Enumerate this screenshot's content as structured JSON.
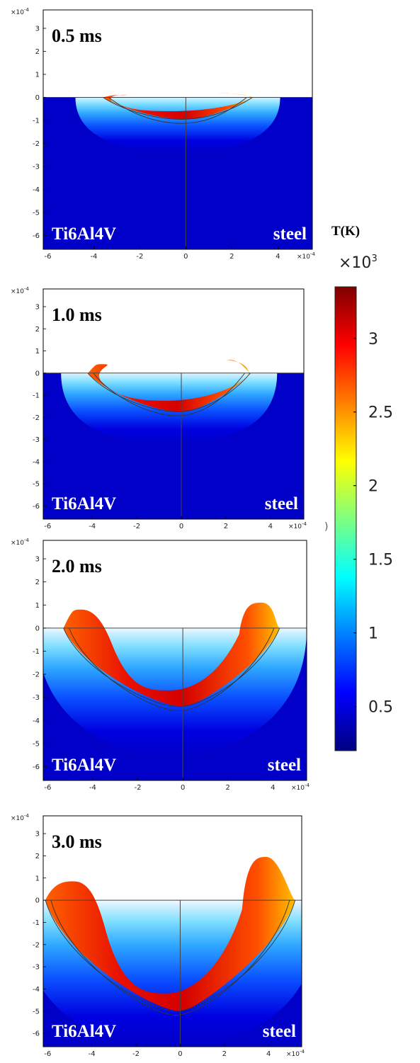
{
  "chart_data": {
    "type": "heatmap",
    "colorbar": {
      "title": "T(K)",
      "multiplier": "×10",
      "multiplier_exp": "3",
      "ticks": [
        "0.5",
        "1",
        "1.5",
        "2",
        "2.5",
        "3"
      ],
      "tick_values": [
        0.5,
        1,
        1.5,
        2,
        2.5,
        3
      ],
      "range": [
        0.2,
        3.35
      ],
      "colormap": [
        "#00007f",
        "#0000ff",
        "#007fff",
        "#00ffff",
        "#7fff7f",
        "#ffff00",
        "#ff7f00",
        "#ff0000",
        "#7f0000"
      ],
      "dangling_char": ")"
    },
    "panels": [
      {
        "time": "0.5 ms",
        "left_material": "Ti6Al4V",
        "right_material": "steel",
        "y_exp_label": "×10",
        "x_exp_label": "×10",
        "exp_power": "-4",
        "xticks": [
          "-6",
          "-4",
          "-2",
          "0",
          "2",
          "4"
        ],
        "xtick_values": [
          -6,
          -4,
          -2,
          0,
          2,
          4
        ],
        "yticks": [
          "3",
          "2",
          "1",
          "0",
          "-1",
          "-2",
          "-3",
          "-4",
          "-5",
          "-6"
        ],
        "ytick_values": [
          3,
          2,
          1,
          0,
          -1,
          -2,
          -3,
          -4,
          -5,
          -6
        ],
        "xlim": [
          -6.2,
          5.5
        ],
        "ylim": [
          -6.6,
          3.8
        ],
        "melt_bottom_depth": 0.6,
        "melt_left_edge": -3.6,
        "melt_right_edge": 2.8,
        "contour_depth": 0.95,
        "contour_left_edge": -3.6,
        "contour_right_edge": 2.9,
        "bumps": [
          [
            -2.7,
            0.1
          ],
          [
            1.3,
            0.2
          ]
        ],
        "heat_depth": 2.4
      },
      {
        "time": "1.0 ms",
        "left_material": "Ti6Al4V",
        "right_material": "steel",
        "y_exp_label": "×10",
        "x_exp_label": "×10",
        "exp_power": "-4",
        "xticks": [
          "-6",
          "-4",
          "-2",
          "0",
          "2",
          "4"
        ],
        "xtick_values": [
          -6,
          -4,
          -2,
          0,
          2,
          4
        ],
        "yticks": [
          "3",
          "2",
          "1",
          "0",
          "-1",
          "-2",
          "-3",
          "-4",
          "-5",
          "-6"
        ],
        "ytick_values": [
          3,
          2,
          1,
          0,
          -1,
          -2,
          -3,
          -4,
          -5,
          -6
        ],
        "xlim": [
          -6.2,
          5.5
        ],
        "ylim": [
          -6.6,
          3.8
        ],
        "melt_bottom_depth": 1.25,
        "melt_left_edge": -4.0,
        "melt_right_edge": 3.0,
        "contour_depth": 1.75,
        "contour_left_edge": -4.2,
        "contour_right_edge": 3.1,
        "bumps": [
          [
            -3.5,
            0.4
          ],
          [
            2.1,
            0.6
          ]
        ],
        "heat_depth": 3.2
      },
      {
        "time": "2.0 ms",
        "left_material": "Ti6Al4V",
        "right_material": "steel",
        "y_exp_label": "×10",
        "x_exp_label": "×10",
        "exp_power": "-4",
        "xticks": [
          "-6",
          "-4",
          "-2",
          "0",
          "2",
          "4"
        ],
        "xtick_values": [
          -6,
          -4,
          -2,
          0,
          2,
          4
        ],
        "yticks": [
          "3",
          "2",
          "1",
          "0",
          "-1",
          "-2",
          "-3",
          "-4",
          "-5",
          "-6"
        ],
        "ytick_values": [
          3,
          2,
          1,
          0,
          -1,
          -2,
          -3,
          -4,
          -5,
          -6
        ],
        "xlim": [
          -6.2,
          5.5
        ],
        "ylim": [
          -6.6,
          3.8
        ],
        "melt_bottom_depth": 2.7,
        "melt_left_edge": -3.5,
        "melt_right_edge": 2.5,
        "contour_depth": 3.4,
        "contour_left_edge": -5.3,
        "contour_right_edge": 4.3,
        "bumps": [
          [
            -4.5,
            0.8
          ],
          [
            3.5,
            1.1
          ]
        ],
        "heat_depth": 5.6
      },
      {
        "time": "3.0 ms",
        "left_material": "Ti6Al4V",
        "right_material": "steel",
        "y_exp_label": "×10",
        "x_exp_label": "×10",
        "exp_power": "-4",
        "xticks": [
          "-6",
          "-4",
          "-2",
          "0",
          "2",
          "4"
        ],
        "xtick_values": [
          -6,
          -4,
          -2,
          0,
          2,
          4
        ],
        "yticks": [
          "3",
          "2",
          "1",
          "0",
          "-1",
          "-2",
          "-3",
          "-4",
          "-5",
          "-6"
        ],
        "ytick_values": [
          3,
          2,
          1,
          0,
          -1,
          -2,
          -3,
          -4,
          -5,
          -6
        ],
        "xlim": [
          -6.2,
          5.5
        ],
        "ylim": [
          -6.6,
          3.8
        ],
        "melt_bottom_depth": 4.2,
        "melt_left_edge": -3.8,
        "melt_right_edge": 2.8,
        "contour_depth": 5.0,
        "contour_left_edge": -6.1,
        "contour_right_edge": 5.2,
        "bumps": [
          [
            -4.8,
            0.85
          ],
          [
            3.9,
            1.95
          ]
        ],
        "heat_depth": 6.6
      }
    ]
  }
}
